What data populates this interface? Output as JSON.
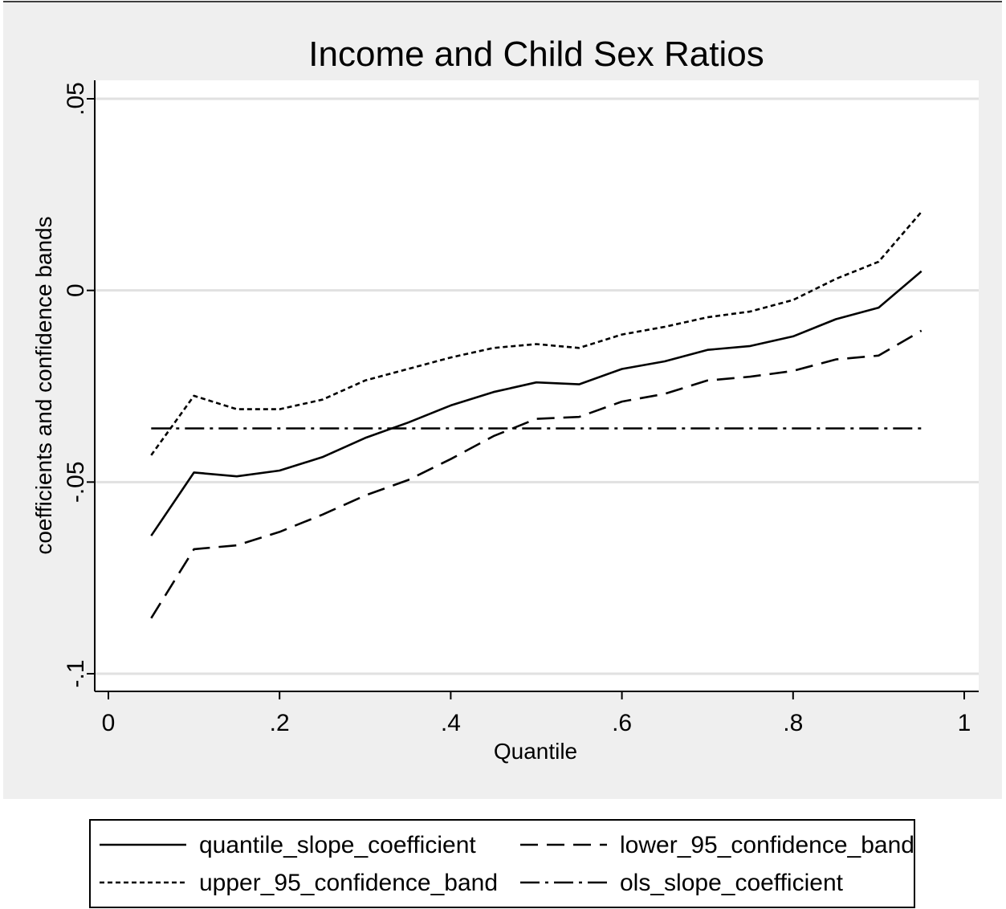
{
  "chart_data": {
    "type": "line",
    "title": "Income and Child Sex Ratios",
    "xlabel": "Quantile",
    "ylabel": "coefficients and confidence bands",
    "xlim": [
      0,
      1
    ],
    "ylim": [
      -0.1,
      0.05
    ],
    "xticks": [
      0,
      0.2,
      0.4,
      0.6,
      0.8,
      1
    ],
    "xtick_labels": [
      "0",
      ".2",
      ".4",
      ".6",
      ".8",
      "1"
    ],
    "yticks": [
      -0.1,
      -0.05,
      0,
      0.05
    ],
    "ytick_labels": [
      "-.1",
      "-.05",
      "0",
      ".05"
    ],
    "grid": "horizontal",
    "legend_position": "bottom",
    "x": [
      0.05,
      0.1,
      0.15,
      0.2,
      0.25,
      0.3,
      0.35,
      0.4,
      0.45,
      0.5,
      0.55,
      0.6,
      0.65,
      0.7,
      0.75,
      0.8,
      0.85,
      0.9,
      0.95
    ],
    "series": [
      {
        "name": "quantile_slope_coefficient",
        "style": "solid",
        "values": [
          -0.064,
          -0.0475,
          -0.0485,
          -0.047,
          -0.0435,
          -0.0385,
          -0.0345,
          -0.03,
          -0.0265,
          -0.024,
          -0.0245,
          -0.0205,
          -0.0185,
          -0.0155,
          -0.0145,
          -0.012,
          -0.0075,
          -0.0045,
          0.005
        ]
      },
      {
        "name": "lower_95_confidence_band",
        "style": "dash",
        "values": [
          -0.0855,
          -0.0675,
          -0.0665,
          -0.063,
          -0.0585,
          -0.0535,
          -0.0495,
          -0.044,
          -0.038,
          -0.0335,
          -0.033,
          -0.029,
          -0.027,
          -0.0235,
          -0.0225,
          -0.021,
          -0.018,
          -0.017,
          -0.0105
        ]
      },
      {
        "name": "upper_95_confidence_band",
        "style": "shortdash",
        "values": [
          -0.043,
          -0.0275,
          -0.031,
          -0.031,
          -0.0285,
          -0.0235,
          -0.0205,
          -0.0175,
          -0.015,
          -0.014,
          -0.015,
          -0.0115,
          -0.0095,
          -0.007,
          -0.0055,
          -0.0025,
          0.003,
          0.0075,
          0.0205
        ]
      },
      {
        "name": "ols_slope_coefficient",
        "style": "dashdot",
        "values": [
          -0.036,
          -0.036,
          -0.036,
          -0.036,
          -0.036,
          -0.036,
          -0.036,
          -0.036,
          -0.036,
          -0.036,
          -0.036,
          -0.036,
          -0.036,
          -0.036,
          -0.036,
          -0.036,
          -0.036,
          -0.036,
          -0.036
        ]
      }
    ]
  },
  "colors": {
    "outer_background": "#efefef",
    "plot_background": "#ffffff",
    "grid": "#e1e1e1",
    "line": "#000000"
  }
}
